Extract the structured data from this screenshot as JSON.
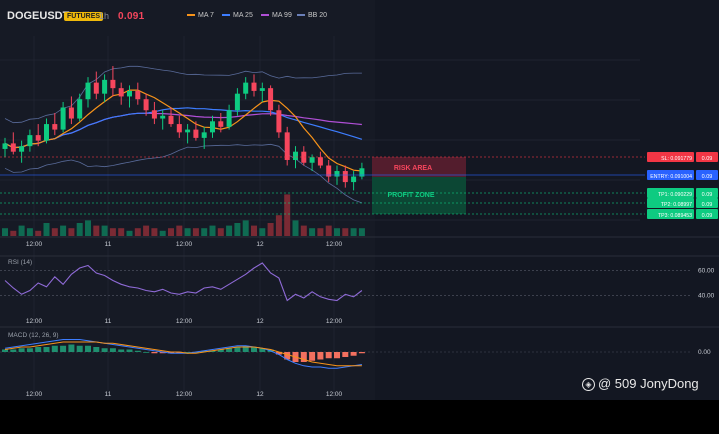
{
  "header": {
    "symbol": "DOGEUSDT",
    "badge": "FUTURES",
    "timeframe": "1h",
    "price": "0.091",
    "legend": [
      {
        "label": "MA 7",
        "color": "#f7931a"
      },
      {
        "label": "MA 25",
        "color": "#3d7dff"
      },
      {
        "label": "MA 99",
        "color": "#b04fd6"
      },
      {
        "label": "BB 20",
        "color": "#6a7fb8"
      }
    ]
  },
  "watermark": "@ 509 JonyDong",
  "chart_data": [
    {
      "type": "candlestick",
      "title": "",
      "x_tick_labels": [
        "12:00",
        "11",
        "12:00",
        "12",
        "12:00"
      ],
      "price_annotations": {
        "sl": {
          "label": "SL: 0.091779",
          "right_value": "0.09",
          "color": "#f23645"
        },
        "entry": {
          "label": "ENTRY: 0.091004",
          "right_value": "0.09",
          "color": "#2962ff"
        },
        "tp": [
          {
            "label": "TP1: 0.090229",
            "right_value": "0.09"
          },
          {
            "label": "TP2: 0.08997",
            "right_value": "0.09"
          },
          {
            "label": "TP3: 0.089453",
            "right_value": "0.09"
          }
        ]
      },
      "zones": {
        "risk": "RISK AREA",
        "profit": "PROFIT ZONE"
      },
      "series": [
        {
          "name": "MA 7",
          "color": "#f7931a"
        },
        {
          "name": "MA 25",
          "color": "#3d7dff"
        },
        {
          "name": "MA 99",
          "color": "#b04fd6"
        },
        {
          "name": "BB 20",
          "color": "#6a7fb8"
        }
      ],
      "candles": [
        [
          0.0918,
          0.0922,
          0.0915,
          0.092
        ],
        [
          0.092,
          0.0924,
          0.0916,
          0.0917
        ],
        [
          0.0917,
          0.0921,
          0.0913,
          0.0919
        ],
        [
          0.0919,
          0.0925,
          0.0917,
          0.0923
        ],
        [
          0.0923,
          0.0927,
          0.0919,
          0.0921
        ],
        [
          0.0921,
          0.0929,
          0.092,
          0.0927
        ],
        [
          0.0927,
          0.0931,
          0.0923,
          0.0925
        ],
        [
          0.0925,
          0.0935,
          0.0924,
          0.0933
        ],
        [
          0.0933,
          0.0937,
          0.0927,
          0.0929
        ],
        [
          0.0929,
          0.0938,
          0.0928,
          0.0936
        ],
        [
          0.0936,
          0.0944,
          0.0933,
          0.0942
        ],
        [
          0.0942,
          0.0946,
          0.0936,
          0.0938
        ],
        [
          0.0938,
          0.0945,
          0.0935,
          0.0943
        ],
        [
          0.0943,
          0.0948,
          0.0937,
          0.094
        ],
        [
          0.094,
          0.0942,
          0.0934,
          0.0937
        ],
        [
          0.0937,
          0.0941,
          0.0933,
          0.0939
        ],
        [
          0.0939,
          0.0942,
          0.0934,
          0.0936
        ],
        [
          0.0936,
          0.0938,
          0.093,
          0.0932
        ],
        [
          0.0932,
          0.0935,
          0.0927,
          0.0929
        ],
        [
          0.0929,
          0.0932,
          0.0925,
          0.093
        ],
        [
          0.093,
          0.0933,
          0.0926,
          0.0927
        ],
        [
          0.0927,
          0.093,
          0.0922,
          0.0924
        ],
        [
          0.0924,
          0.0927,
          0.092,
          0.0925
        ],
        [
          0.0925,
          0.0928,
          0.0921,
          0.0922
        ],
        [
          0.0922,
          0.0926,
          0.0918,
          0.0924
        ],
        [
          0.0924,
          0.093,
          0.0922,
          0.0928
        ],
        [
          0.0928,
          0.0931,
          0.0924,
          0.0926
        ],
        [
          0.0926,
          0.0934,
          0.0925,
          0.0932
        ],
        [
          0.0932,
          0.094,
          0.093,
          0.0938
        ],
        [
          0.0938,
          0.0944,
          0.0936,
          0.0942
        ],
        [
          0.0942,
          0.0945,
          0.0937,
          0.0939
        ],
        [
          0.0939,
          0.0942,
          0.0935,
          0.094
        ],
        [
          0.094,
          0.0941,
          0.093,
          0.0932
        ],
        [
          0.0932,
          0.0934,
          0.0922,
          0.0924
        ],
        [
          0.0924,
          0.0926,
          0.0912,
          0.0914
        ],
        [
          0.0914,
          0.0919,
          0.0911,
          0.0917
        ],
        [
          0.0917,
          0.0919,
          0.0912,
          0.0913
        ],
        [
          0.0913,
          0.0916,
          0.091,
          0.0915
        ],
        [
          0.0915,
          0.0917,
          0.0911,
          0.0912
        ],
        [
          0.0912,
          0.0914,
          0.0906,
          0.0908
        ],
        [
          0.0908,
          0.0912,
          0.0905,
          0.091
        ],
        [
          0.091,
          0.0912,
          0.0904,
          0.0906
        ],
        [
          0.0906,
          0.091,
          0.0903,
          0.0908
        ],
        [
          0.0908,
          0.0913,
          0.0907,
          0.0911
        ]
      ],
      "volume": [
        3,
        2,
        4,
        3,
        2,
        5,
        3,
        4,
        3,
        5,
        6,
        4,
        4,
        3,
        3,
        2,
        3,
        4,
        3,
        2,
        3,
        4,
        3,
        3,
        3,
        4,
        3,
        4,
        5,
        6,
        4,
        3,
        5,
        8,
        16,
        6,
        4,
        3,
        3,
        4,
        3,
        3,
        3,
        3
      ],
      "rsi": {
        "label": "RSI (14)",
        "levels": [
          "60.00",
          "40.00"
        ],
        "values": [
          52,
          46,
          41,
          44,
          50,
          47,
          55,
          49,
          57,
          62,
          64,
          58,
          56,
          52,
          49,
          47,
          46,
          44,
          43,
          45,
          42,
          41,
          43,
          42,
          46,
          47,
          45,
          49,
          53,
          57,
          62,
          66,
          58,
          54,
          36,
          41,
          38,
          43,
          39,
          37,
          36,
          41,
          39,
          44
        ]
      },
      "macd": {
        "label": "MACD (12, 26, 9)",
        "zero_label": "0.00",
        "hist": [
          2,
          2,
          3,
          3,
          4,
          4,
          5,
          5,
          6,
          5,
          5,
          4,
          3,
          3,
          2,
          2,
          1,
          0,
          -1,
          -1,
          -1,
          -1,
          0,
          0,
          1,
          1,
          2,
          3,
          4,
          5,
          4,
          3,
          2,
          -2,
          -6,
          -8,
          -8,
          -7,
          -6,
          -5,
          -5,
          -4,
          -3,
          -1
        ],
        "macd": [
          3,
          4,
          5,
          6,
          7,
          8,
          9,
          10,
          10,
          10,
          9,
          8,
          7,
          6,
          5,
          4,
          3,
          2,
          1,
          0,
          -1,
          -1,
          -1,
          0,
          1,
          2,
          3,
          4,
          5,
          5,
          4,
          3,
          1,
          -2,
          -6,
          -9,
          -11,
          -12,
          -12,
          -13,
          -13,
          -12,
          -11,
          -10
        ],
        "signal": [
          2,
          3,
          4,
          4,
          5,
          6,
          7,
          8,
          8,
          8,
          8,
          8,
          7,
          7,
          6,
          5,
          4,
          3,
          2,
          1,
          0,
          0,
          -1,
          -1,
          0,
          1,
          2,
          3,
          4,
          4,
          4,
          3,
          2,
          0,
          -2,
          -4,
          -6,
          -8,
          -9,
          -10,
          -11,
          -11,
          -11,
          -11
        ]
      }
    }
  ]
}
